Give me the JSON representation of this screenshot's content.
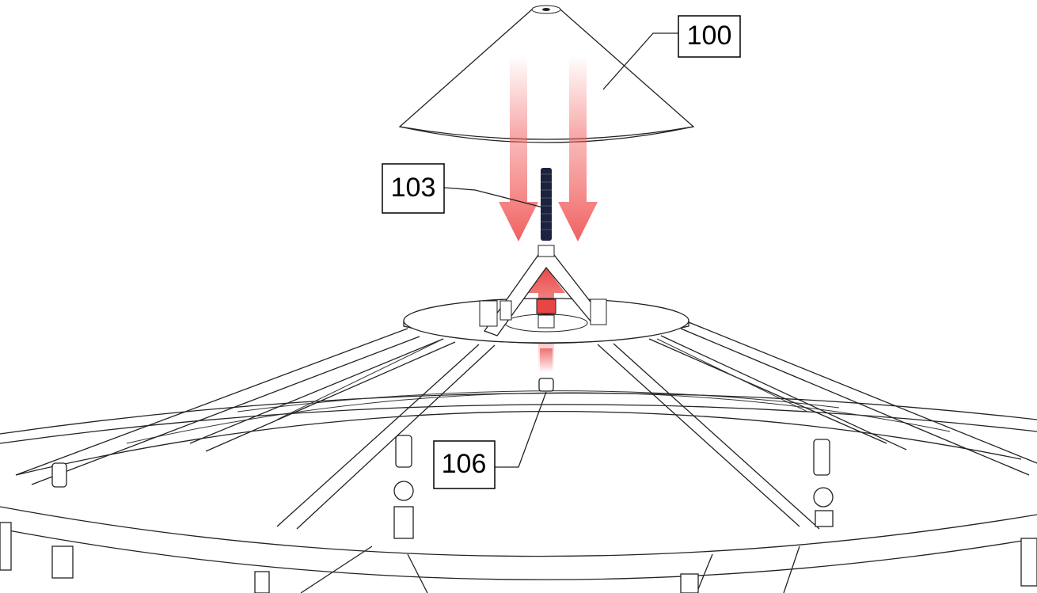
{
  "callouts": [
    "100",
    "103",
    "106"
  ]
}
